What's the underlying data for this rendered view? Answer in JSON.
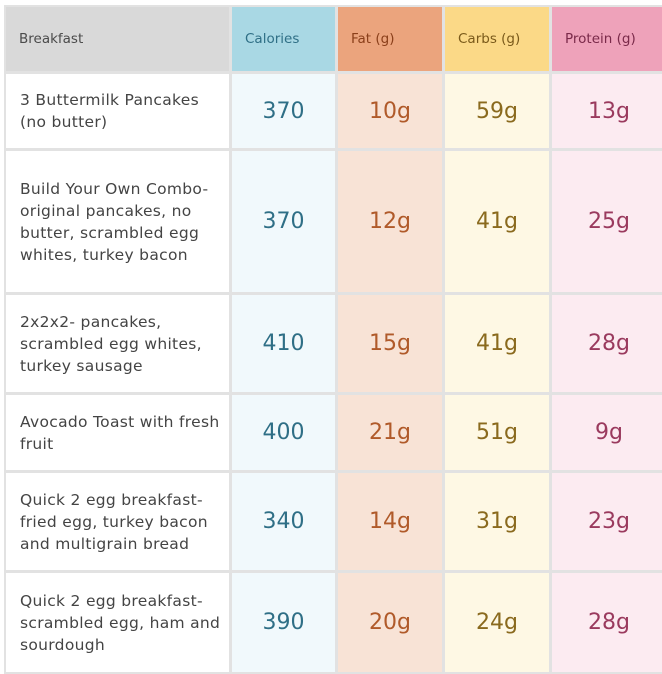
{
  "headers": {
    "breakfast": "Breakfast",
    "calories": "Calories",
    "fat": "Fat (g)",
    "carbs": "Carbs (g)",
    "protein": "Protein (g)"
  },
  "rows": [
    {
      "name": "3 Buttermilk Pancakes (no butter)",
      "calories": "370",
      "fat": "10g",
      "carbs": "59g",
      "protein": "13g"
    },
    {
      "name": "Build Your Own Combo- original pancakes, no butter, scrambled egg whites, turkey bacon",
      "calories": "370",
      "fat": "12g",
      "carbs": "41g",
      "protein": "25g"
    },
    {
      "name": "2x2x2- pancakes, scrambled egg whites, turkey sausage",
      "calories": "410",
      "fat": "15g",
      "carbs": "41g",
      "protein": "28g"
    },
    {
      "name": "Avocado Toast with fresh fruit",
      "calories": "400",
      "fat": "21g",
      "carbs": "51g",
      "protein": "9g"
    },
    {
      "name": "Quick 2 egg breakfast- fried egg, turkey bacon and multigrain bread",
      "calories": "340",
      "fat": "14g",
      "carbs": "31g",
      "protein": "23g"
    },
    {
      "name": "Quick 2 egg breakfast- scrambled egg, ham and sourdough",
      "calories": "390",
      "fat": "20g",
      "carbs": "24g",
      "protein": "28g"
    }
  ],
  "colors": {
    "calories": "#2f6f86",
    "fat": "#b05a2a",
    "carbs": "#8a6a1e",
    "protein": "#9a3a5e"
  }
}
